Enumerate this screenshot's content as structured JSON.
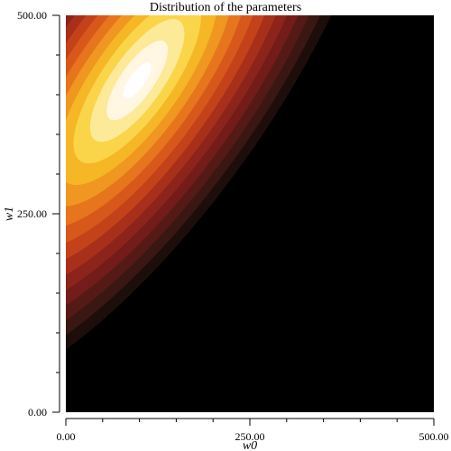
{
  "chart_data": {
    "type": "heatmap",
    "subtype": "filled-contour",
    "title": "Distribution of the parameters",
    "xlabel": "w0",
    "ylabel": "w1",
    "xlim": [
      0,
      500
    ],
    "ylim": [
      0,
      500
    ],
    "x_ticks": [
      {
        "value": 0,
        "label": "0.00"
      },
      {
        "value": 250,
        "label": "250.00"
      },
      {
        "value": 500,
        "label": "500.00"
      }
    ],
    "y_ticks": [
      {
        "value": 0,
        "label": "0.00"
      },
      {
        "value": 250,
        "label": "250.00"
      },
      {
        "value": 500,
        "label": "500.00"
      }
    ],
    "minor_tick_step": 50,
    "grid": false,
    "legend": "none",
    "colormap": [
      "#000000",
      "#1e0e0b",
      "#3a1712",
      "#561a16",
      "#731c1a",
      "#8d241b",
      "#a8301a",
      "#c4421a",
      "#d8581b",
      "#e6751d",
      "#ef9720",
      "#f5b725",
      "#fad54a",
      "#fcea98",
      "#fff7e2",
      "#ffffff"
    ],
    "distribution": {
      "peak": [
        97,
        418
      ],
      "semi_axes": [
        128,
        46
      ],
      "orientation_deg": 52
    }
  }
}
